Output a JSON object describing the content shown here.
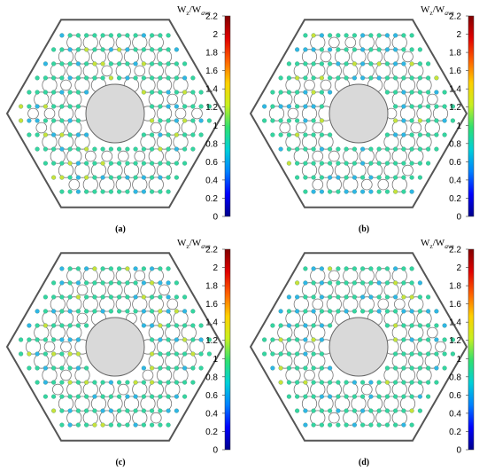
{
  "figure": {
    "panels": [
      {
        "id": "a",
        "caption": "(a)"
      },
      {
        "id": "b",
        "caption": "(b)"
      },
      {
        "id": "c",
        "caption": "(c)"
      },
      {
        "id": "d",
        "caption": "(d)"
      }
    ],
    "colorbar": {
      "title_main": "W",
      "title_sub1": "z",
      "title_sep": "/W",
      "title_sub2": "ave",
      "ticks": [
        "2.2",
        "2",
        "1.8",
        "1.6",
        "1.4",
        "1.2",
        "1",
        "0.8",
        "0.6",
        "0.4",
        "0.2",
        "0"
      ],
      "range": [
        0,
        2.2
      ],
      "colormap": [
        "#00008b",
        "#0000ff",
        "#0080ff",
        "#00d0d8",
        "#30e070",
        "#c8f020",
        "#ffd000",
        "#ff6000",
        "#e00000",
        "#800000"
      ]
    },
    "colors": {
      "hexagon_stroke": "#555555",
      "rod_stroke": "#777777",
      "central_tube_fill": "#d9d9d9",
      "central_tube_stroke": "#666666",
      "typical_channel": "#34d6a0",
      "low_channel": "#2fb6e6",
      "high_channel": "#c9e23a"
    }
  }
}
